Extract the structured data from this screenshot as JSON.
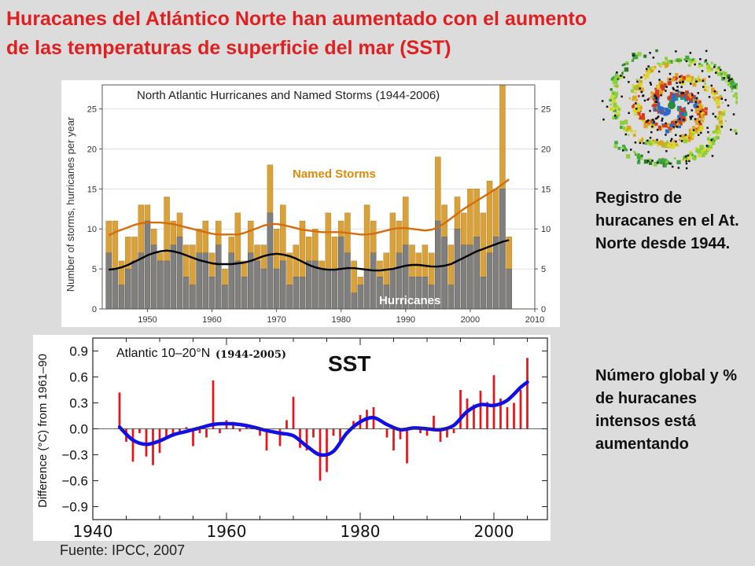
{
  "title": {
    "line1": "Huracanes del Atlántico Norte han aumentado con el aumento",
    "line2": "de las temperaturas de superficie del mar (SST)"
  },
  "side": {
    "text1": "Registro de huracanes en el At. Norte desde 1944.",
    "text2": "Número global y % de huracanes intensos está aumentando"
  },
  "sst_label": "SST",
  "source": "Fuente: IPCC, 2007",
  "chart_data": [
    {
      "type": "bar",
      "title": "North Atlantic Hurricanes and Named Storms (1944-2006)",
      "ylabel": "Number of storms, hurricanes per year",
      "xlim": [
        1943,
        2010
      ],
      "ylim": [
        0,
        28
      ],
      "x_ticks": [
        1950,
        1960,
        1970,
        1980,
        1990,
        2000,
        2010
      ],
      "y_ticks": [
        0,
        5,
        10,
        15,
        20,
        25
      ],
      "grid": true,
      "years": [
        1944,
        1945,
        1946,
        1947,
        1948,
        1949,
        1950,
        1951,
        1952,
        1953,
        1954,
        1955,
        1956,
        1957,
        1958,
        1959,
        1960,
        1961,
        1962,
        1963,
        1964,
        1965,
        1966,
        1967,
        1968,
        1969,
        1970,
        1971,
        1972,
        1973,
        1974,
        1975,
        1976,
        1977,
        1978,
        1979,
        1980,
        1981,
        1982,
        1983,
        1984,
        1985,
        1986,
        1987,
        1988,
        1989,
        1990,
        1991,
        1992,
        1993,
        1994,
        1995,
        1996,
        1997,
        1998,
        1999,
        2000,
        2001,
        2002,
        2003,
        2004,
        2005,
        2006
      ],
      "series": [
        {
          "name": "Named Storms",
          "values": [
            11,
            11,
            6,
            9,
            9,
            13,
            13,
            10,
            7,
            14,
            11,
            12,
            8,
            8,
            10,
            11,
            7,
            11,
            5,
            9,
            12,
            6,
            11,
            8,
            8,
            18,
            10,
            13,
            7,
            8,
            11,
            9,
            10,
            6,
            12,
            9,
            11,
            12,
            6,
            4,
            13,
            11,
            6,
            7,
            12,
            11,
            14,
            8,
            7,
            8,
            7,
            19,
            13,
            8,
            14,
            12,
            15,
            15,
            12,
            16,
            15,
            28,
            9
          ]
        },
        {
          "name": "Hurricanes",
          "values": [
            7,
            5,
            3,
            5,
            6,
            7,
            11,
            8,
            6,
            6,
            8,
            9,
            4,
            3,
            7,
            7,
            4,
            8,
            3,
            7,
            6,
            4,
            7,
            6,
            5,
            12,
            5,
            6,
            3,
            4,
            4,
            6,
            6,
            5,
            5,
            5,
            9,
            7,
            2,
            3,
            5,
            7,
            4,
            3,
            5,
            7,
            8,
            4,
            4,
            4,
            3,
            11,
            9,
            3,
            10,
            8,
            8,
            9,
            4,
            7,
            9,
            15,
            5
          ]
        }
      ],
      "trends": [
        {
          "name": "Named Storms",
          "values": [
            9.2,
            9.6,
            9.9,
            10.2,
            10.5,
            10.7,
            10.8,
            10.8,
            10.8,
            10.7,
            10.6,
            10.4,
            10.2,
            10.0,
            9.8,
            9.6,
            9.4,
            9.3,
            9.3,
            9.3,
            9.3,
            9.5,
            9.8,
            10.1,
            10.4,
            10.6,
            10.6,
            10.5,
            10.3,
            10.1,
            9.9,
            9.8,
            9.7,
            9.6,
            9.6,
            9.6,
            9.6,
            9.5,
            9.4,
            9.3,
            9.3,
            9.4,
            9.6,
            9.8,
            10.0,
            10.1,
            10.1,
            10.0,
            9.9,
            9.8,
            9.9,
            10.2,
            10.7,
            11.3,
            11.9,
            12.5,
            13.0,
            13.5,
            14.0,
            14.5,
            15.0,
            15.6,
            16.2
          ]
        },
        {
          "name": "Hurricanes",
          "values": [
            4.9,
            5.0,
            5.2,
            5.5,
            5.9,
            6.3,
            6.7,
            7.0,
            7.2,
            7.3,
            7.2,
            7.0,
            6.7,
            6.4,
            6.1,
            5.9,
            5.7,
            5.6,
            5.6,
            5.6,
            5.7,
            5.8,
            6.0,
            6.3,
            6.6,
            6.8,
            6.9,
            6.8,
            6.6,
            6.3,
            5.9,
            5.5,
            5.2,
            5.0,
            4.9,
            4.9,
            5.0,
            5.1,
            5.1,
            5.0,
            4.9,
            4.8,
            4.8,
            4.9,
            5.0,
            5.2,
            5.4,
            5.5,
            5.5,
            5.4,
            5.3,
            5.3,
            5.4,
            5.6,
            6.0,
            6.4,
            6.8,
            7.2,
            7.5,
            7.8,
            8.1,
            8.4,
            8.6
          ]
        }
      ],
      "colors": {
        "named_storms": "#d9a13a",
        "hurricanes": "#7f7f7f",
        "named_trend": "#d56d0c",
        "hurricane_trend": "#000000"
      }
    },
    {
      "type": "bar",
      "title": "Atlantic 10–20°N",
      "subtitle": "(1944-2005)",
      "ylabel": "Difference (°C) from 1961–90",
      "xlim": [
        1940,
        2008
      ],
      "ylim": [
        -1.05,
        1.05
      ],
      "x_ticks": [
        1940,
        1960,
        1980,
        2000
      ],
      "y_ticks": [
        0.9,
        0.6,
        0.3,
        0.0,
        -0.3,
        -0.6,
        -0.9
      ],
      "years": [
        1944,
        1945,
        1946,
        1947,
        1948,
        1949,
        1950,
        1951,
        1952,
        1953,
        1954,
        1955,
        1956,
        1957,
        1958,
        1959,
        1960,
        1961,
        1962,
        1963,
        1964,
        1965,
        1966,
        1967,
        1968,
        1969,
        1970,
        1971,
        1972,
        1973,
        1974,
        1975,
        1976,
        1977,
        1978,
        1979,
        1980,
        1981,
        1982,
        1983,
        1984,
        1985,
        1986,
        1987,
        1988,
        1989,
        1990,
        1991,
        1992,
        1993,
        1994,
        1995,
        1996,
        1997,
        1998,
        1999,
        2000,
        2001,
        2002,
        2003,
        2004,
        2005
      ],
      "values": [
        0.42,
        -0.15,
        -0.38,
        -0.05,
        -0.32,
        -0.42,
        -0.28,
        -0.1,
        -0.08,
        -0.05,
        0.02,
        -0.2,
        -0.05,
        -0.1,
        0.56,
        -0.05,
        0.1,
        0.08,
        -0.03,
        0.04,
        0.0,
        -0.08,
        -0.25,
        0.0,
        -0.2,
        0.1,
        0.37,
        -0.22,
        -0.25,
        -0.1,
        -0.6,
        -0.5,
        -0.08,
        -0.15,
        0.0,
        0.09,
        0.16,
        0.22,
        0.25,
        0.0,
        -0.1,
        -0.25,
        -0.12,
        -0.4,
        0.01,
        -0.05,
        -0.08,
        0.15,
        -0.15,
        -0.1,
        -0.05,
        0.45,
        0.35,
        0.28,
        0.44,
        0.31,
        0.62,
        0.35,
        0.25,
        0.3,
        0.45,
        0.82
      ],
      "smooth_years": [
        1944,
        1946,
        1948,
        1950,
        1952,
        1954,
        1956,
        1958,
        1960,
        1962,
        1964,
        1966,
        1968,
        1970,
        1972,
        1974,
        1976,
        1978,
        1980,
        1982,
        1984,
        1986,
        1988,
        1990,
        1992,
        1994,
        1996,
        1998,
        2000,
        2002,
        2004,
        2005
      ],
      "smooth_values": [
        0.02,
        -0.13,
        -0.18,
        -0.14,
        -0.07,
        -0.03,
        0.01,
        0.05,
        0.06,
        0.05,
        0.02,
        -0.02,
        -0.05,
        -0.08,
        -0.2,
        -0.3,
        -0.26,
        -0.05,
        0.08,
        0.13,
        0.05,
        -0.01,
        0.01,
        0.0,
        -0.01,
        0.04,
        0.2,
        0.28,
        0.27,
        0.33,
        0.48,
        0.54
      ],
      "colors": {
        "bars": "#e8141a",
        "smooth": "#1010e6"
      }
    }
  ]
}
